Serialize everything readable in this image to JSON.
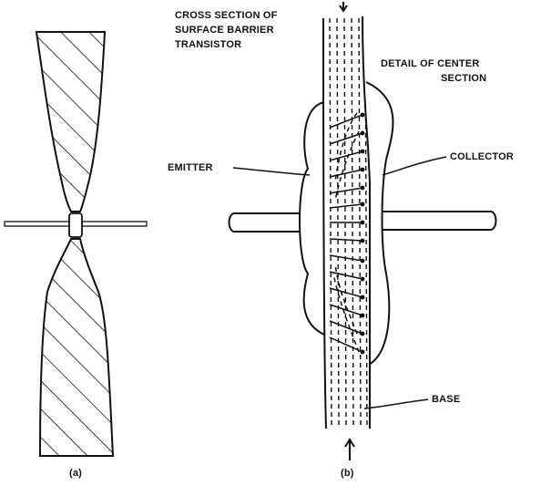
{
  "labels": {
    "title": [
      "CROSS SECTION OF",
      "SURFACE BARRIER",
      "TRANSISTOR"
    ],
    "detail": [
      "DETAIL OF CENTER",
      "SECTION"
    ],
    "emitter": "EMITTER",
    "collector": "COLLECTOR",
    "base": "BASE"
  },
  "captions": {
    "a": "(a)",
    "b": "(b)"
  },
  "colors": {
    "ink": "#111111",
    "paper": "#ffffff"
  }
}
